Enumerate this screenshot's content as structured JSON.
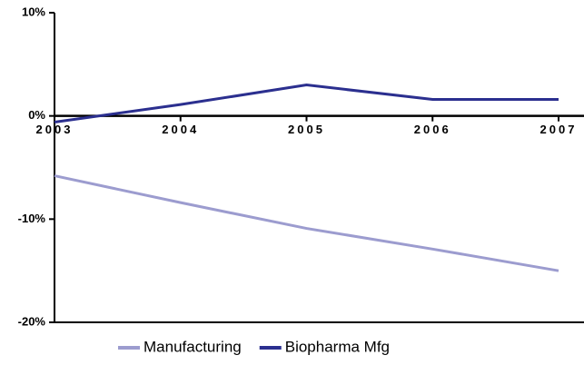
{
  "chart_data": {
    "type": "line",
    "categories": [
      "2003",
      "2004",
      "2005",
      "2006",
      "2007"
    ],
    "series": [
      {
        "name": "Manufacturing",
        "color": "#9c9ccf",
        "values": [
          -5.8,
          -8.4,
          -10.9,
          -12.9,
          -15.0
        ]
      },
      {
        "name": "Biopharma Mfg",
        "color": "#2b2f8f",
        "values": [
          -0.6,
          1.1,
          3.0,
          1.6,
          1.6
        ]
      }
    ],
    "ylim": [
      -20,
      10
    ],
    "yticks": [
      {
        "value": -20,
        "label": "-20%"
      },
      {
        "value": -10,
        "label": "-10%"
      },
      {
        "value": 0,
        "label": "0%"
      },
      {
        "value": 10,
        "label": "10%"
      }
    ],
    "legend": "bottom"
  }
}
